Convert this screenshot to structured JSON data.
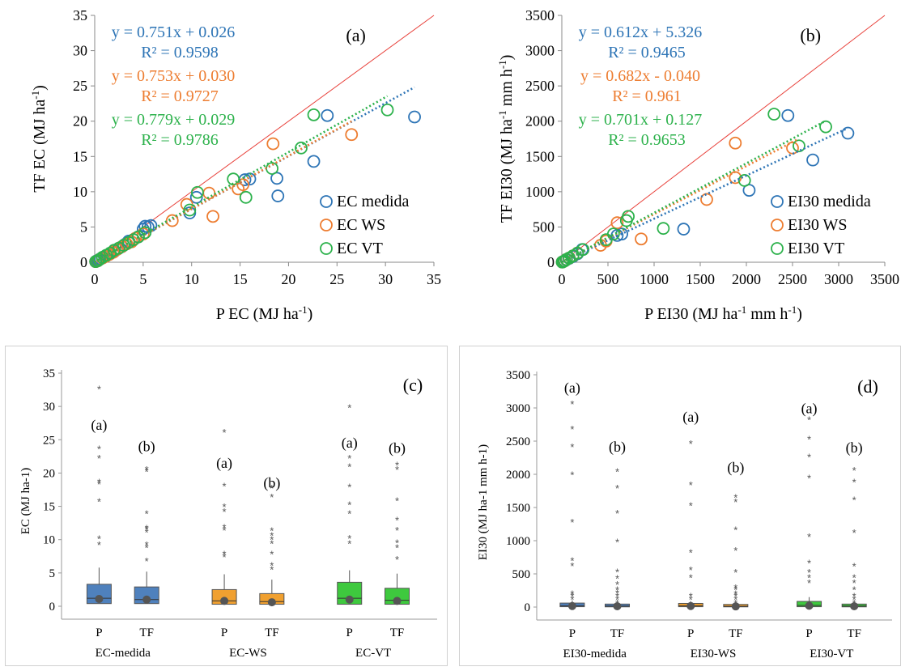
{
  "colors": {
    "blue": "#2E75B6",
    "orange": "#ED7D31",
    "green": "#2DB24C",
    "identity": "#E8423C",
    "box_blue": "#4F81BD",
    "box_orange": "#F0A030",
    "box_green": "#3EC93E",
    "text": "#000000",
    "frame": "#d0d0d0"
  },
  "chart_data": [
    {
      "id": "a",
      "type": "scatter",
      "panel_label": "(a)",
      "xlabel": "P EC (MJ ha",
      "xlabel_sup": "-1",
      "xlabel_end": ")",
      "ylabel": "TF EC (MJ ha",
      "ylabel_sup": "-1",
      "ylabel_end": ")",
      "xlim": [
        0,
        35
      ],
      "ylim": [
        0,
        35
      ],
      "xticks": [
        0,
        5,
        10,
        15,
        20,
        25,
        30,
        35
      ],
      "yticks": [
        0,
        5,
        10,
        15,
        20,
        25,
        30,
        35
      ],
      "equations": [
        {
          "text": "y = 0.751x + 0.026",
          "r2": "R² = 0.9598",
          "color": "blue"
        },
        {
          "text": "y = 0.753x + 0.030",
          "r2": "R² = 0.9727",
          "color": "orange"
        },
        {
          "text": "y = 0.779x + 0.029",
          "r2": "R² = 0.9786",
          "color": "green"
        }
      ],
      "series": [
        {
          "name": "EC medida",
          "color": "blue",
          "slope": 0.751,
          "intercept": 0.026,
          "trend_x": [
            0,
            33
          ],
          "points": [
            [
              0.1,
              0.1
            ],
            [
              0.2,
              0.2
            ],
            [
              0.4,
              0.3
            ],
            [
              0.6,
              0.5
            ],
            [
              0.8,
              0.6
            ],
            [
              1.0,
              0.8
            ],
            [
              1.3,
              1.0
            ],
            [
              1.6,
              1.2
            ],
            [
              2.0,
              1.5
            ],
            [
              2.4,
              1.9
            ],
            [
              2.8,
              2.2
            ],
            [
              3.2,
              2.6
            ],
            [
              3.5,
              3.0
            ],
            [
              4.0,
              3.2
            ],
            [
              4.5,
              3.6
            ],
            [
              5.0,
              4.7
            ],
            [
              5.2,
              5.1
            ],
            [
              5.5,
              5.0
            ],
            [
              5.8,
              5.2
            ],
            [
              9.8,
              7.0
            ],
            [
              10.5,
              9.2
            ],
            [
              15.5,
              11.7
            ],
            [
              16.0,
              11.8
            ],
            [
              18.8,
              11.9
            ],
            [
              18.9,
              9.4
            ],
            [
              22.6,
              14.3
            ],
            [
              24.0,
              20.8
            ],
            [
              33.0,
              20.6
            ]
          ]
        },
        {
          "name": "EC WS",
          "color": "orange",
          "slope": 0.753,
          "intercept": 0.03,
          "trend_x": [
            0,
            26.5
          ],
          "points": [
            [
              0.1,
              0.1
            ],
            [
              0.3,
              0.2
            ],
            [
              0.5,
              0.4
            ],
            [
              0.8,
              0.6
            ],
            [
              1.1,
              0.8
            ],
            [
              1.5,
              1.1
            ],
            [
              1.9,
              1.4
            ],
            [
              2.3,
              1.8
            ],
            [
              2.8,
              2.2
            ],
            [
              3.3,
              2.6
            ],
            [
              3.8,
              2.9
            ],
            [
              4.2,
              3.4
            ],
            [
              5.0,
              4.0
            ],
            [
              8.0,
              5.9
            ],
            [
              9.5,
              8.2
            ],
            [
              11.8,
              9.8
            ],
            [
              12.2,
              6.5
            ],
            [
              14.8,
              10.4
            ],
            [
              15.3,
              11.0
            ],
            [
              18.4,
              16.8
            ],
            [
              26.5,
              18.1
            ]
          ]
        },
        {
          "name": "EC VT",
          "color": "green",
          "slope": 0.779,
          "intercept": 0.029,
          "trend_x": [
            0,
            30.2
          ],
          "points": [
            [
              0.1,
              0.1
            ],
            [
              0.3,
              0.2
            ],
            [
              0.5,
              0.4
            ],
            [
              0.8,
              0.7
            ],
            [
              1.2,
              1.0
            ],
            [
              1.6,
              1.3
            ],
            [
              2.0,
              1.7
            ],
            [
              2.5,
              2.0
            ],
            [
              3.0,
              2.4
            ],
            [
              3.5,
              2.8
            ],
            [
              4.0,
              3.2
            ],
            [
              4.5,
              3.6
            ],
            [
              5.2,
              4.2
            ],
            [
              9.8,
              7.4
            ],
            [
              10.6,
              9.9
            ],
            [
              14.3,
              11.8
            ],
            [
              15.6,
              9.2
            ],
            [
              18.3,
              13.3
            ],
            [
              21.3,
              16.2
            ],
            [
              22.6,
              20.9
            ],
            [
              30.2,
              21.6
            ]
          ]
        }
      ]
    },
    {
      "id": "b",
      "type": "scatter",
      "panel_label": "(b)",
      "xlabel": "P EI30 (MJ ha",
      "xlabel_sup": "-1",
      "xlabel_mid": " mm h",
      "xlabel_sup2": "-1",
      "xlabel_end": ")",
      "ylabel": "TF EI30 (MJ ha",
      "ylabel_sup": "-1",
      "ylabel_mid": " mm h",
      "ylabel_sup2": "-1",
      "ylabel_end": ")",
      "xlim": [
        0,
        3500
      ],
      "ylim": [
        0,
        3500
      ],
      "xticks": [
        0,
        500,
        1000,
        1500,
        2000,
        2500,
        3000,
        3500
      ],
      "yticks": [
        0,
        500,
        1000,
        1500,
        2000,
        2500,
        3000,
        3500
      ],
      "equations": [
        {
          "text": "y = 0.612x + 5.326",
          "r2": "R² = 0.9465",
          "color": "blue"
        },
        {
          "text": "y = 0.682x - 0.040",
          "r2": "R² = 0.961",
          "color": "orange"
        },
        {
          "text": "y = 0.701x + 0.127",
          "r2": "R² = 0.9653",
          "color": "green"
        }
      ],
      "series": [
        {
          "name": "EI30 medida",
          "color": "blue",
          "slope": 0.612,
          "intercept": 5.326,
          "trend_x": [
            0,
            3100
          ],
          "points": [
            [
              5,
              3
            ],
            [
              15,
              10
            ],
            [
              30,
              20
            ],
            [
              50,
              35
            ],
            [
              80,
              55
            ],
            [
              120,
              80
            ],
            [
              170,
              120
            ],
            [
              220,
              180
            ],
            [
              600,
              380
            ],
            [
              650,
              400
            ],
            [
              1320,
              470
            ],
            [
              2030,
              1020
            ],
            [
              2450,
              2080
            ],
            [
              2720,
              1450
            ],
            [
              3100,
              1830
            ]
          ]
        },
        {
          "name": "EI30 WS",
          "color": "orange",
          "slope": 0.682,
          "intercept": -0.04,
          "trend_x": [
            0,
            2560
          ],
          "points": [
            [
              5,
              3
            ],
            [
              15,
              10
            ],
            [
              30,
              20
            ],
            [
              50,
              40
            ],
            [
              80,
              60
            ],
            [
              120,
              90
            ],
            [
              170,
              130
            ],
            [
              420,
              240
            ],
            [
              480,
              300
            ],
            [
              600,
              560
            ],
            [
              860,
              330
            ],
            [
              1570,
              890
            ],
            [
              1880,
              1690
            ],
            [
              1880,
              1200
            ],
            [
              2500,
              1620
            ]
          ]
        },
        {
          "name": "EI30 VT",
          "color": "green",
          "slope": 0.701,
          "intercept": 0.127,
          "trend_x": [
            0,
            2860
          ],
          "points": [
            [
              5,
              3
            ],
            [
              15,
              10
            ],
            [
              30,
              20
            ],
            [
              50,
              40
            ],
            [
              80,
              60
            ],
            [
              120,
              90
            ],
            [
              170,
              130
            ],
            [
              230,
              180
            ],
            [
              480,
              320
            ],
            [
              560,
              400
            ],
            [
              700,
              590
            ],
            [
              720,
              650
            ],
            [
              1100,
              480
            ],
            [
              1980,
              1160
            ],
            [
              2300,
              2100
            ],
            [
              2570,
              1650
            ],
            [
              2860,
              1920
            ]
          ]
        }
      ]
    },
    {
      "id": "c",
      "type": "box",
      "panel_label": "(c)",
      "ylabel": "EC (MJ ha-1)",
      "ylim": [
        0,
        35
      ],
      "yticks": [
        0,
        5,
        10,
        15,
        20,
        25,
        30,
        35
      ],
      "groups": [
        {
          "label": "EC-medida",
          "color": "box_blue",
          "boxes": [
            {
              "cat": "P",
              "q1": 0.4,
              "median": 1.2,
              "q3": 3.3,
              "whisker_high": 5.8,
              "mean": 1.1,
              "letter": "(a)",
              "letter_y": 26.5,
              "outliers": [
                9.6,
                10.5,
                16.1,
                18.7,
                19.0,
                22.6,
                24.0,
                33.0
              ]
            },
            {
              "cat": "TF",
              "q1": 0.4,
              "median": 1.0,
              "q3": 2.9,
              "whisker_high": 5.2,
              "mean": 1.0,
              "letter": "(b)",
              "letter_y": 23.3,
              "outliers": [
                7.2,
                9.2,
                9.6,
                11.5,
                11.9,
                12.1,
                14.3,
                20.6,
                20.9
              ]
            }
          ]
        },
        {
          "label": "EC-WS",
          "color": "box_orange",
          "boxes": [
            {
              "cat": "P",
              "q1": 0.3,
              "median": 0.8,
              "q3": 2.5,
              "whisker_high": 4.8,
              "mean": 0.8,
              "letter": "(a)",
              "letter_y": 20.8,
              "outliers": [
                7.8,
                8.2,
                11.8,
                12.2,
                14.6,
                15.3,
                18.4,
                26.5
              ]
            },
            {
              "cat": "TF",
              "q1": 0.3,
              "median": 0.7,
              "q3": 1.9,
              "whisker_high": 4.0,
              "mean": 0.6,
              "letter": "(b)",
              "letter_y": 17.8,
              "outliers": [
                5.9,
                6.5,
                8.2,
                9.8,
                10.4,
                11.0,
                11.7,
                16.8,
                18.1
              ]
            }
          ]
        },
        {
          "label": "EC-VT",
          "color": "box_green",
          "boxes": [
            {
              "cat": "P",
              "q1": 0.3,
              "median": 1.2,
              "q3": 3.6,
              "whisker_high": 5.4,
              "mean": 1.0,
              "letter": "(a)",
              "letter_y": 23.8,
              "outliers": [
                9.8,
                10.6,
                14.3,
                15.6,
                18.3,
                21.3,
                22.6,
                30.2
              ]
            },
            {
              "cat": "TF",
              "q1": 0.3,
              "median": 0.9,
              "q3": 2.7,
              "whisker_high": 4.9,
              "mean": 0.8,
              "letter": "(b)",
              "letter_y": 23.0,
              "outliers": [
                7.4,
                9.2,
                9.9,
                11.8,
                13.3,
                16.2,
                20.9,
                21.6
              ]
            }
          ]
        }
      ]
    },
    {
      "id": "d",
      "type": "box",
      "panel_label": "(d)",
      "ylabel": "EI30 (MJ ha-1 mm h-1)",
      "ylim": [
        0,
        3500
      ],
      "yticks": [
        0,
        500,
        1000,
        1500,
        2000,
        2500,
        3000,
        3500
      ],
      "groups": [
        {
          "label": "EI30-medida",
          "color": "box_blue",
          "boxes": [
            {
              "cat": "P",
              "q1": 5,
              "median": 20,
              "q3": 60,
              "whisker_high": 100,
              "mean": 15,
              "letter": "(a)",
              "letter_y": 3230,
              "outliers": [
                150,
                200,
                240,
                660,
                740,
                1320,
                2030,
                2450,
                2720,
                3100
              ]
            },
            {
              "cat": "TF",
              "q1": 3,
              "median": 15,
              "q3": 45,
              "whisker_high": 80,
              "mean": 12,
              "letter": "(b)",
              "letter_y": 2340,
              "outliers": [
                100,
                150,
                200,
                250,
                300,
                380,
                470,
                570,
                1020,
                1450,
                1830,
                2080
              ]
            }
          ]
        },
        {
          "label": "EI30-WS",
          "color": "box_orange",
          "boxes": [
            {
              "cat": "P",
              "q1": 5,
              "median": 20,
              "q3": 55,
              "whisker_high": 90,
              "mean": 15,
              "letter": "(a)",
              "letter_y": 2790,
              "outliers": [
                150,
                200,
                480,
                600,
                860,
                1570,
                1880,
                2500
              ]
            },
            {
              "cat": "TF",
              "q1": 3,
              "median": 12,
              "q3": 40,
              "whisker_high": 70,
              "mean": 10,
              "letter": "(b)",
              "letter_y": 2030,
              "outliers": [
                100,
                150,
                200,
                240,
                300,
                330,
                560,
                890,
                1200,
                1620,
                1690
              ]
            }
          ]
        },
        {
          "label": "EI30-VT",
          "color": "box_green",
          "boxes": [
            {
              "cat": "P",
              "q1": 5,
              "median": 25,
              "q3": 85,
              "whisker_high": 150,
              "mean": 20,
              "letter": "(a)",
              "letter_y": 2920,
              "outliers": [
                400,
                480,
                560,
                700,
                1100,
                1980,
                2300,
                2570,
                2860
              ]
            },
            {
              "cat": "TF",
              "q1": 3,
              "median": 15,
              "q3": 45,
              "whisker_high": 90,
              "mean": 12,
              "letter": "(b)",
              "letter_y": 2330,
              "outliers": [
                100,
                150,
                200,
                300,
                400,
                480,
                650,
                1160,
                1650,
                1920,
                2100
              ]
            }
          ]
        }
      ]
    }
  ]
}
